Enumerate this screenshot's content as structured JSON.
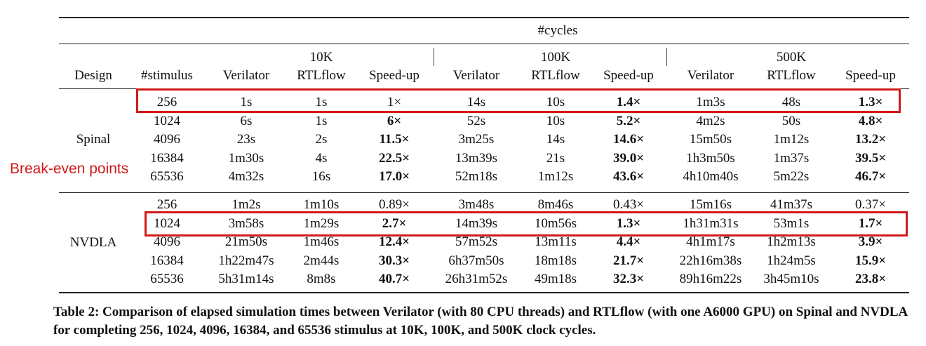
{
  "table": {
    "top_header": "#cycles",
    "columns": {
      "design": "Design",
      "stimulus": "#stimulus",
      "groups": [
        {
          "label": "10K",
          "verilator": "Verilator",
          "rtlflow": "RTLflow",
          "speedup": "Speed-up"
        },
        {
          "label": "100K",
          "verilator": "Verilator",
          "rtlflow": "RTLflow",
          "speedup": "Speed-up"
        },
        {
          "label": "500K",
          "verilator": "Verilator",
          "rtlflow": "RTLflow",
          "speedup": "Speed-up"
        }
      ]
    },
    "designs": [
      {
        "name": "Spinal",
        "rows": [
          [
            "256",
            "1s",
            "1s",
            "1×",
            "14s",
            "10s",
            "1.4×",
            "1m3s",
            "48s",
            "1.3×"
          ],
          [
            "1024",
            "6s",
            "1s",
            "6×",
            "52s",
            "10s",
            "5.2×",
            "4m2s",
            "50s",
            "4.8×"
          ],
          [
            "4096",
            "23s",
            "2s",
            "11.5×",
            "3m25s",
            "14s",
            "14.6×",
            "15m50s",
            "1m12s",
            "13.2×"
          ],
          [
            "16384",
            "1m30s",
            "4s",
            "22.5×",
            "13m39s",
            "21s",
            "39.0×",
            "1h3m50s",
            "1m37s",
            "39.5×"
          ],
          [
            "65536",
            "4m32s",
            "16s",
            "17.0×",
            "52m18s",
            "1m12s",
            "43.6×",
            "4h10m40s",
            "5m22s",
            "46.7×"
          ]
        ]
      },
      {
        "name": "NVDLA",
        "rows": [
          [
            "256",
            "1m2s",
            "1m10s",
            "0.89×",
            "3m48s",
            "8m46s",
            "0.43×",
            "15m16s",
            "41m37s",
            "0.37×"
          ],
          [
            "1024",
            "3m58s",
            "1m29s",
            "2.7×",
            "14m39s",
            "10m56s",
            "1.3×",
            "1h31m31s",
            "53m1s",
            "1.7×"
          ],
          [
            "4096",
            "21m50s",
            "1m46s",
            "12.4×",
            "57m52s",
            "13m11s",
            "4.4×",
            "4h1m17s",
            "1h2m13s",
            "3.9×"
          ],
          [
            "16384",
            "1h22m47s",
            "2m44s",
            "30.3×",
            "6h37m50s",
            "18m18s",
            "21.7×",
            "22h16m38s",
            "1h24m5s",
            "15.9×"
          ],
          [
            "65536",
            "5h31m14s",
            "8m8s",
            "40.7×",
            "26h31m52s",
            "49m18s",
            "32.3×",
            "89h16m22s",
            "3h45m10s",
            "23.8×"
          ]
        ]
      }
    ],
    "bold_speedups": {
      "Spinal": [
        [
          false,
          true,
          true
        ],
        [
          true,
          true,
          true
        ],
        [
          true,
          true,
          true
        ],
        [
          true,
          true,
          true
        ],
        [
          true,
          true,
          true
        ]
      ],
      "NVDLA": [
        [
          false,
          false,
          false
        ],
        [
          true,
          true,
          true
        ],
        [
          true,
          true,
          true
        ],
        [
          true,
          true,
          true
        ],
        [
          true,
          true,
          true
        ]
      ]
    }
  },
  "annotation": {
    "text": "Break-even points",
    "color": "#d21a1a"
  },
  "caption": "Table 2: Comparison of elapsed simulation times between Verilator (with 80 CPU threads) and RTLflow (with one A6000 GPU) on Spinal and NVDLA for completing 256, 1024, 4096, 16384, and 65536 stimulus at 10K, 100K, and 500K clock cycles."
}
